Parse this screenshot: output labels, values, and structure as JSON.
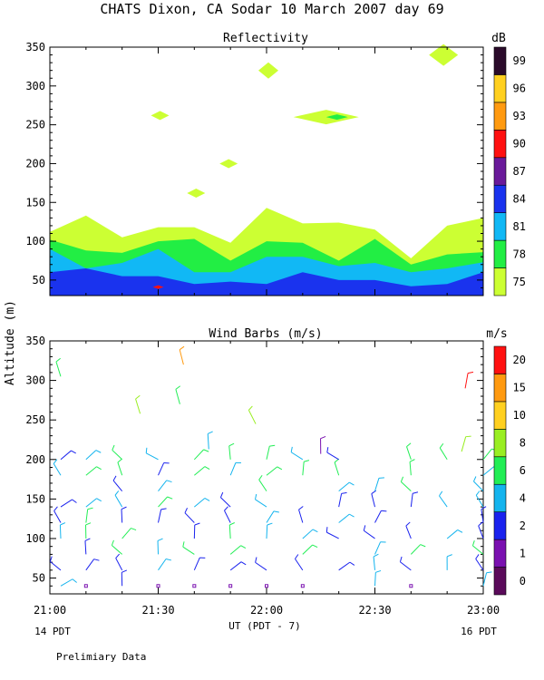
{
  "title": "CHATS Dixon, CA  Sodar  10 March 2007  day  69",
  "ylabel": "Altitude (m)",
  "xlabel": "UT  (PDT - 7)",
  "x_start_note": "14 PDT",
  "x_end_note": "16 PDT",
  "footer": "Prelimiary Data",
  "x_ticks": [
    "21:00",
    "21:30",
    "22:00",
    "22:30",
    "23:00"
  ],
  "y_ticks": [
    "50",
    "100",
    "150",
    "200",
    "250",
    "300",
    "350"
  ],
  "chart_data": [
    {
      "type": "heatmap",
      "title": "Reflectivity",
      "colorbar_label": "dB",
      "colorbar_ticks": [
        "75",
        "78",
        "81",
        "84",
        "87",
        "90",
        "93",
        "96",
        "99"
      ],
      "levels": [
        {
          "min": 75,
          "color": "#ccff33"
        },
        {
          "min": 78,
          "color": "#22ee44"
        },
        {
          "min": 81,
          "color": "#11b8f5"
        },
        {
          "min": 84,
          "color": "#1a33ee"
        },
        {
          "min": 87,
          "color": "#6a1a9a"
        },
        {
          "min": 90,
          "color": "#ff1010"
        },
        {
          "min": 93,
          "color": "#ff9a10"
        },
        {
          "min": 96,
          "color": "#ffd020"
        },
        {
          "min": 99,
          "color": "#2a0a2a"
        }
      ],
      "xlim": [
        0,
        120
      ],
      "ylim": [
        30,
        350
      ],
      "x_minutes": [
        0,
        10,
        20,
        30,
        40,
        50,
        60,
        70,
        80,
        90,
        100,
        110,
        120
      ],
      "top_75": [
        112,
        133,
        105,
        118,
        118,
        98,
        143,
        123,
        124,
        115,
        78,
        120,
        130
      ],
      "top_78": [
        102,
        88,
        85,
        100,
        103,
        75,
        100,
        98,
        75,
        103,
        70,
        83,
        86
      ],
      "top_81": [
        90,
        65,
        72,
        90,
        60,
        60,
        80,
        80,
        68,
        72,
        60,
        65,
        73
      ],
      "top_84": [
        60,
        65,
        55,
        55,
        45,
        48,
        45,
        60,
        50,
        50,
        42,
        45,
        60
      ],
      "patches": [
        {
          "level": 75,
          "time_min": 30.5,
          "alt_m": 262
        },
        {
          "level": 75,
          "time_min": 40.5,
          "alt_m": 162
        },
        {
          "level": 75,
          "time_min": 49.5,
          "alt_m": 200
        },
        {
          "level": 75,
          "time_min": 60.5,
          "alt_m": 320
        },
        {
          "level": 75,
          "time_min": 76.5,
          "alt_m": 260
        },
        {
          "level": 78,
          "time_min": 79.5,
          "alt_m": 260
        },
        {
          "level": 75,
          "time_min": 109,
          "alt_m": 340
        },
        {
          "level": 90,
          "time_min": 30,
          "alt_m": 41
        }
      ]
    },
    {
      "type": "scatter",
      "title": "Wind Barbs (m/s)",
      "colorbar_label": "m/s",
      "colorbar_ticks": [
        "0",
        "1",
        "2",
        "4",
        "6",
        "8",
        "10",
        "15",
        "20"
      ],
      "levels": [
        {
          "min": 0,
          "color": "#5a0a5a"
        },
        {
          "min": 1,
          "color": "#7a10b0"
        },
        {
          "min": 2,
          "color": "#1a22ee"
        },
        {
          "min": 4,
          "color": "#14b4ee"
        },
        {
          "min": 6,
          "color": "#22ee55"
        },
        {
          "min": 8,
          "color": "#99ee22"
        },
        {
          "min": 10,
          "color": "#ffd020"
        },
        {
          "min": 15,
          "color": "#ff9a10"
        },
        {
          "min": 20,
          "color": "#ff1010"
        }
      ],
      "xlim": [
        0,
        120
      ],
      "ylim": [
        30,
        350
      ],
      "x_minutes": [
        0,
        10,
        20,
        30,
        40,
        50,
        60,
        70,
        80,
        90,
        100,
        110,
        120
      ],
      "alts_m": [
        40,
        60,
        80,
        100,
        120,
        140,
        160,
        180,
        200
      ]
    }
  ]
}
